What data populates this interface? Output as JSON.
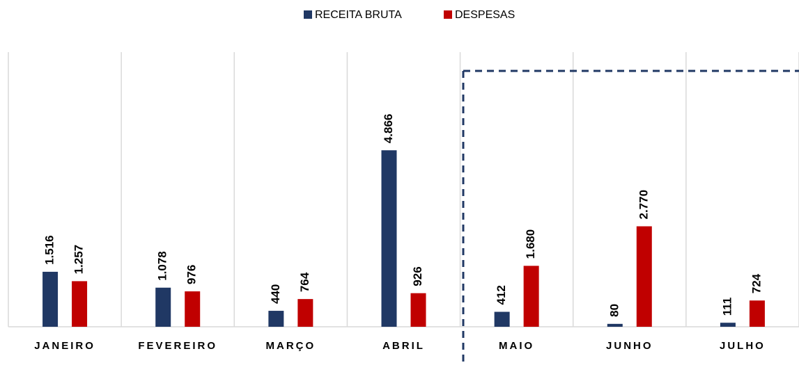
{
  "chart_data": {
    "type": "bar",
    "categories": [
      "JANEIRO",
      "FEVEREIRO",
      "MARÇO",
      "ABRIL",
      "MAIO",
      "JUNHO",
      "JULHO"
    ],
    "series": [
      {
        "name": "RECEITA BRUTA",
        "color": "#203864",
        "values": [
          1516,
          1078,
          440,
          4866,
          412,
          80,
          111
        ],
        "value_labels": [
          "1.516",
          "1.078",
          "440",
          "4.866",
          "412",
          "80",
          "111"
        ]
      },
      {
        "name": "DESPESAS",
        "color": "#c00000",
        "values": [
          1257,
          976,
          764,
          926,
          1680,
          2770,
          724
        ],
        "value_labels": [
          "1.257",
          "976",
          "764",
          "926",
          "1.680",
          "2.770",
          "724"
        ]
      }
    ],
    "ylim": [
      0,
      6000
    ],
    "grid": true
  }
}
